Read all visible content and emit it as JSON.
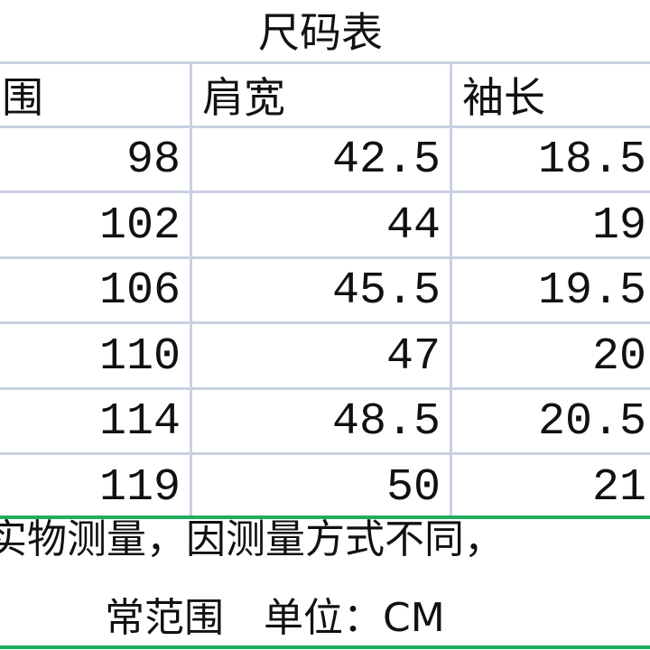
{
  "title": "尺码表",
  "headers": [
    "围",
    "肩宽",
    "袖长"
  ],
  "rows": [
    [
      "98",
      "42.5",
      "18.5"
    ],
    [
      "102",
      "44",
      "19"
    ],
    [
      "106",
      "45.5",
      "19.5"
    ],
    [
      "110",
      "47",
      "20"
    ],
    [
      "114",
      "48.5",
      "20.5"
    ],
    [
      "119",
      "50",
      "21"
    ]
  ],
  "note_line1": "实物测量，因测量方式不同，",
  "note_line2": "常范围　单位：CM",
  "colors": {
    "grid": "#c9d0e2",
    "accent_line": "#1fae5f"
  }
}
